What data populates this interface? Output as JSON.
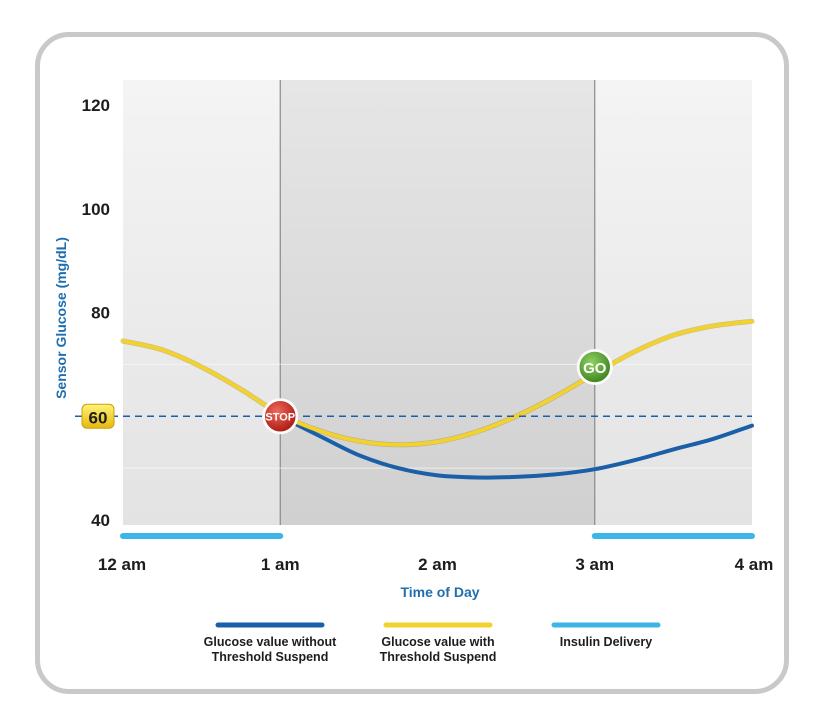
{
  "chart_data": {
    "type": "line",
    "xlabel": "Time of Day",
    "ylabel": "Sensor Glucose (mg/dL)",
    "x_ticks": [
      "12 am",
      "1 am",
      "2 am",
      "3 am",
      "4 am"
    ],
    "y_ticks": [
      40,
      60,
      80,
      100,
      120
    ],
    "ylim": [
      40,
      120
    ],
    "xlim_hours": [
      0,
      4
    ],
    "grid": false,
    "threshold": {
      "value": 60,
      "label": "60",
      "color": "#1b5fa8"
    },
    "suspend_period_hours": [
      1,
      3
    ],
    "series": [
      {
        "name": "Glucose value without Threshold Suspend",
        "color": "#1a5fa8",
        "x": [
          1.0,
          1.25,
          1.5,
          1.75,
          2.0,
          2.25,
          2.5,
          2.75,
          3.0,
          3.25,
          3.5,
          3.75,
          4.0
        ],
        "y": [
          60,
          56.2,
          52.5,
          50,
          48.6,
          48.2,
          48.3,
          48.8,
          49.8,
          51.5,
          53.6,
          55.6,
          58.2
        ]
      },
      {
        "name": "Glucose value with Threshold Suspend",
        "color": "#f3d22e",
        "x": [
          0,
          0.25,
          0.5,
          0.75,
          1.0,
          1.25,
          1.5,
          1.75,
          2.0,
          2.25,
          2.5,
          2.75,
          3.0,
          3.25,
          3.5,
          3.75,
          4.0
        ],
        "y": [
          74.5,
          72.8,
          69.5,
          65.2,
          60.4,
          57.2,
          55.2,
          54.5,
          55.1,
          57.0,
          60.0,
          63.8,
          68.2,
          72.4,
          75.6,
          77.4,
          78.3
        ]
      },
      {
        "name": "Insulin Delivery",
        "color": "#3bb6e6",
        "segments_hours": [
          [
            0,
            1
          ],
          [
            3,
            4
          ]
        ]
      }
    ],
    "markers": [
      {
        "label": "STOP",
        "x": 1.0,
        "y": 60,
        "color": "#d12a1f"
      },
      {
        "label": "GO",
        "x": 3.0,
        "y": 69.5,
        "color": "#5aa732"
      }
    ],
    "legend": [
      {
        "line1": "Glucose value without",
        "line2": "Threshold Suspend",
        "color": "#1a5fa8"
      },
      {
        "line1": "Glucose value with",
        "line2": "Threshold Suspend",
        "color": "#f3d22e"
      },
      {
        "line1": "Insulin Delivery",
        "line2": "",
        "color": "#3bb6e6"
      }
    ],
    "legend_position": "bottom"
  }
}
